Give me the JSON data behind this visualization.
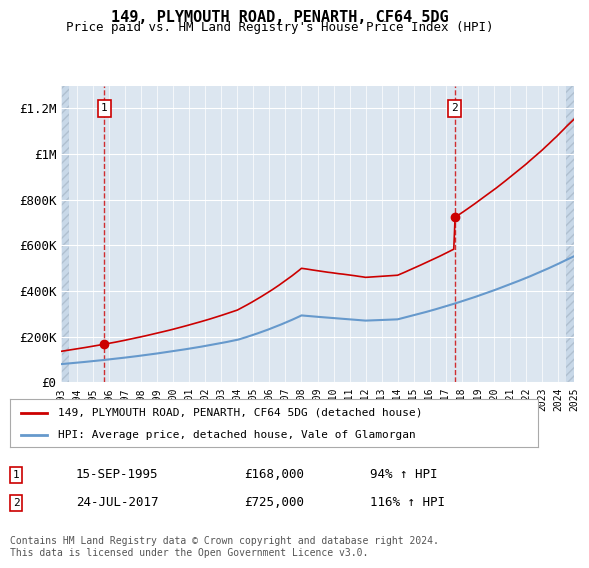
{
  "title": "149, PLYMOUTH ROAD, PENARTH, CF64 5DG",
  "subtitle": "Price paid vs. HM Land Registry's House Price Index (HPI)",
  "ylim": [
    0,
    1300000
  ],
  "yticks": [
    0,
    200000,
    400000,
    600000,
    800000,
    1000000,
    1200000
  ],
  "ytick_labels": [
    "£0",
    "£200K",
    "£400K",
    "£600K",
    "£800K",
    "£1M",
    "£1.2M"
  ],
  "sale1_date": "15-SEP-1995",
  "sale1_price": 168000,
  "sale1_hpi": "94%",
  "sale1_label": "1",
  "sale1_year": 1995.71,
  "sale2_date": "24-JUL-2017",
  "sale2_price": 725000,
  "sale2_hpi": "116%",
  "sale2_label": "2",
  "sale2_year": 2017.55,
  "hpi_color": "#6699cc",
  "price_color": "#cc0000",
  "background_plot": "#dce6f0",
  "background_hatch": "#c8d8e8",
  "grid_color": "#ffffff",
  "annotation_color": "#cc0000",
  "legend_label1": "149, PLYMOUTH ROAD, PENARTH, CF64 5DG (detached house)",
  "legend_label2": "HPI: Average price, detached house, Vale of Glamorgan",
  "footer": "Contains HM Land Registry data © Crown copyright and database right 2024.\nThis data is licensed under the Open Government Licence v3.0.",
  "xstart": 1993,
  "xend": 2025
}
